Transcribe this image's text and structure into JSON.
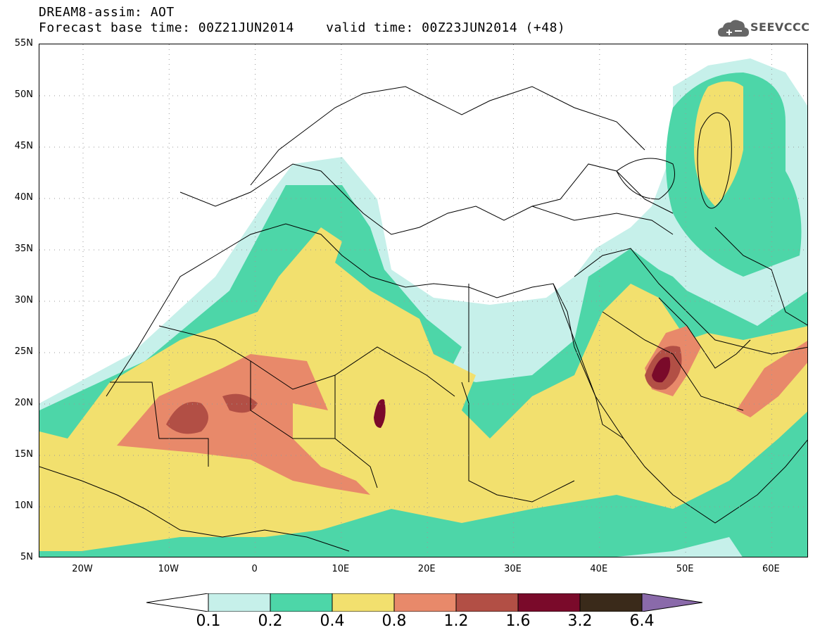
{
  "header": {
    "title_line1": "DREAM8-assim: AOT",
    "title_line2": "Forecast base time: 00Z21JUN2014    valid time: 00Z23JUN2014 (+48)",
    "logo_text": "SEEVCCC"
  },
  "map": {
    "lat_labels": [
      "55N",
      "50N",
      "45N",
      "40N",
      "35N",
      "30N",
      "25N",
      "20N",
      "15N",
      "10N",
      "5N"
    ],
    "lon_labels": [
      "20W",
      "10W",
      "0",
      "10E",
      "20E",
      "30E",
      "40E",
      "50E",
      "60E"
    ],
    "colors": {
      "c01": "#c6f0ea",
      "c02": "#4dd6a8",
      "c04": "#f2e06e",
      "c08": "#e8896a",
      "c12": "#b24f45",
      "c16": "#7a0a2a",
      "c32": "#3a2a1a",
      "c64": "#8a6aaa",
      "border": "#000000"
    }
  },
  "colorbar": {
    "ticks": [
      "0.1",
      "0.2",
      "0.4",
      "0.8",
      "1.2",
      "1.6",
      "3.2",
      "6.4"
    ]
  }
}
